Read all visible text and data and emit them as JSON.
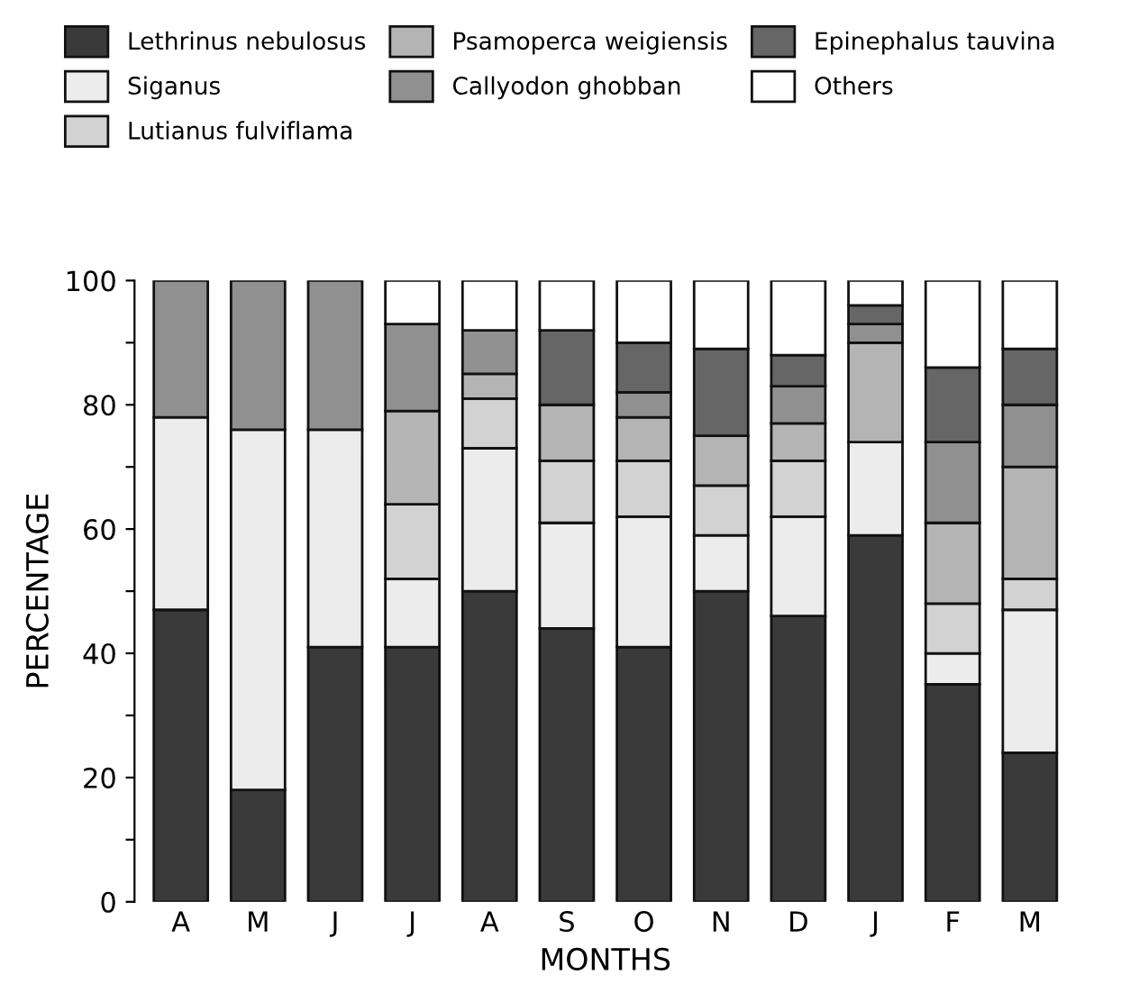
{
  "chart_data": {
    "type": "bar",
    "stacked": true,
    "xlabel": "MONTHS",
    "ylabel": "PERCENTAGE",
    "categories": [
      "A",
      "M",
      "J",
      "J",
      "A",
      "S",
      "O",
      "N",
      "D",
      "J",
      "F",
      "M"
    ],
    "series": [
      {
        "name": "Lethrinus nebulosus",
        "color": "#3a3a3a",
        "values": [
          47,
          18,
          41,
          41,
          50,
          44,
          41,
          50,
          46,
          59,
          35,
          24
        ]
      },
      {
        "name": "Siganus",
        "color": "#ececec",
        "values": [
          31,
          58,
          35,
          11,
          23,
          17,
          21,
          9,
          16,
          15,
          5,
          23
        ]
      },
      {
        "name": "Lutianus fulviflama",
        "color": "#d2d2d2",
        "values": [
          0,
          0,
          0,
          12,
          8,
          10,
          9,
          8,
          9,
          0,
          8,
          5
        ]
      },
      {
        "name": "Psamoperca weigiensis",
        "color": "#b4b4b4",
        "values": [
          0,
          0,
          0,
          15,
          4,
          9,
          7,
          8,
          6,
          16,
          13,
          18
        ]
      },
      {
        "name": "Callyodon ghobban",
        "color": "#909090",
        "values": [
          22,
          24,
          24,
          14,
          7,
          0,
          4,
          0,
          6,
          3,
          13,
          10
        ]
      },
      {
        "name": "Epinephalus tauvina",
        "color": "#666666",
        "values": [
          0,
          0,
          0,
          0,
          0,
          12,
          8,
          14,
          5,
          3,
          12,
          9
        ]
      },
      {
        "name": "Others",
        "color": "#ffffff",
        "values": [
          0,
          0,
          0,
          7,
          8,
          8,
          10,
          11,
          12,
          4,
          14,
          11
        ]
      }
    ],
    "ylim": [
      0,
      100
    ],
    "yticks": [
      0,
      {
        "value": 10,
        "label": null
      },
      20,
      {
        "value": 30,
        "label": null
      },
      40,
      {
        "value": 50,
        "label": null
      },
      60,
      {
        "value": 70,
        "label": null
      },
      80,
      {
        "value": 90,
        "label": null
      },
      100
    ],
    "grid": false,
    "legend": "top"
  }
}
